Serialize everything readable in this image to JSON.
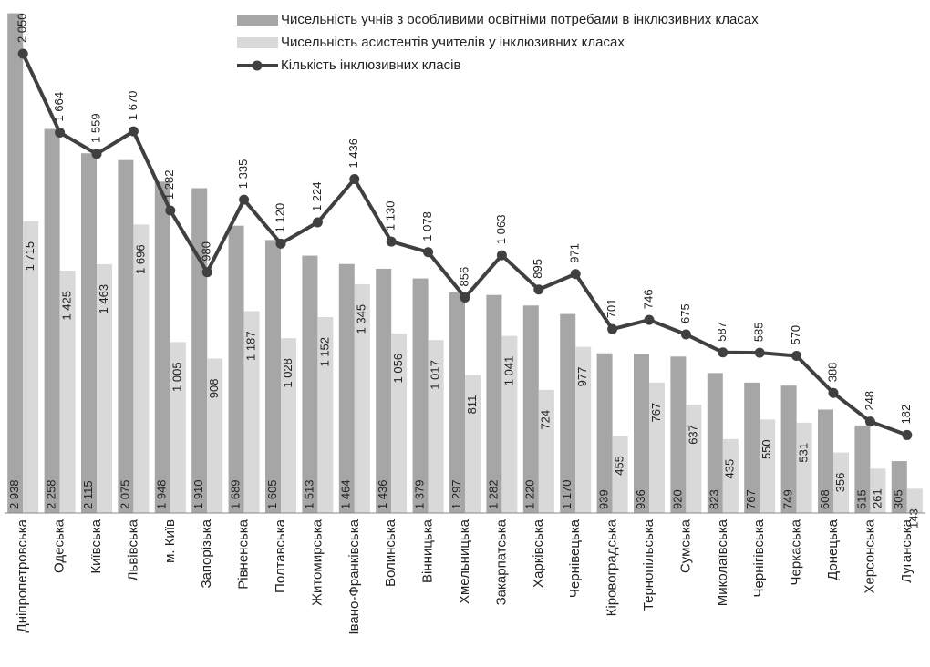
{
  "chart_data": {
    "type": "bar_line",
    "categories": [
      "Дніпропетровська",
      "Одеська",
      "Київська",
      "Львівська",
      "м. Київ",
      "Запорізька",
      "Рівненська",
      "Полтавська",
      "Житомирська",
      "Івано-Франківська",
      "Волинська",
      "Вінницька",
      "Хмельницька",
      "Закарпатська",
      "Харківська",
      "Чернівецька",
      "Кіровоградська",
      "Тернопільська",
      "Сумська",
      "Миколаївська",
      "Чернігівська",
      "Черкаська",
      "Донецька",
      "Херсонська",
      "Луганська"
    ],
    "series": [
      {
        "name": "Чисельність учнів з особливими освітніми потребами в інклюзивних класах",
        "type": "bar",
        "color": "#a6a6a6",
        "values": [
          2938,
          2258,
          2115,
          2075,
          1948,
          1910,
          1689,
          1605,
          1513,
          1464,
          1436,
          1379,
          1297,
          1282,
          1220,
          1170,
          939,
          936,
          920,
          823,
          767,
          749,
          608,
          515,
          305
        ],
        "value_labels": [
          "2 938",
          "2 258",
          "2 115",
          "2 075",
          "1 948",
          "1 910",
          "1 689",
          "1 605",
          "1 513",
          "1 464",
          "1 436",
          "1 379",
          "1 297",
          "1 282",
          "1 220",
          "1 170",
          "939",
          "936",
          "920",
          "823",
          "767",
          "749",
          "608",
          "515",
          "305"
        ]
      },
      {
        "name": "Чисельність асистентів учителів у інклюзивних класах",
        "type": "bar",
        "color": "#d9d9d9",
        "values": [
          1715,
          1425,
          1463,
          1696,
          1005,
          908,
          1187,
          1028,
          1152,
          1345,
          1056,
          1017,
          811,
          1041,
          724,
          977,
          455,
          767,
          637,
          435,
          550,
          531,
          356,
          261,
          143
        ],
        "value_labels": [
          "1 715",
          "1 425",
          "1 463",
          "1 696",
          "1 005",
          "908",
          "1 187",
          "1 028",
          "1 152",
          "1 345",
          "1 056",
          "1 017",
          "811",
          "1 041",
          "724",
          "977",
          "455",
          "767",
          "637",
          "435",
          "550",
          "531",
          "356",
          "261",
          "143"
        ]
      },
      {
        "name": "Кількість інклюзивних класів",
        "type": "line",
        "axis": "y2",
        "color": "#404040",
        "values": [
          2050,
          1664,
          1559,
          1670,
          1282,
          980,
          1335,
          1120,
          1224,
          1436,
          1130,
          1078,
          856,
          1063,
          895,
          971,
          701,
          746,
          675,
          587,
          585,
          570,
          388,
          248,
          182
        ],
        "value_labels": [
          "2 050",
          "1 664",
          "1 559",
          "1 670",
          "1 282",
          "980",
          "1 335",
          "1 120",
          "1 224",
          "1 436",
          "1 130",
          "1 078",
          "856",
          "1 063",
          "895",
          "971",
          "701",
          "746",
          "675",
          "587",
          "585",
          "570",
          "388",
          "248",
          "182"
        ]
      }
    ],
    "ylim": [
      0,
      3000
    ],
    "y2lim": [
      -200,
      2300
    ],
    "grid": false
  }
}
